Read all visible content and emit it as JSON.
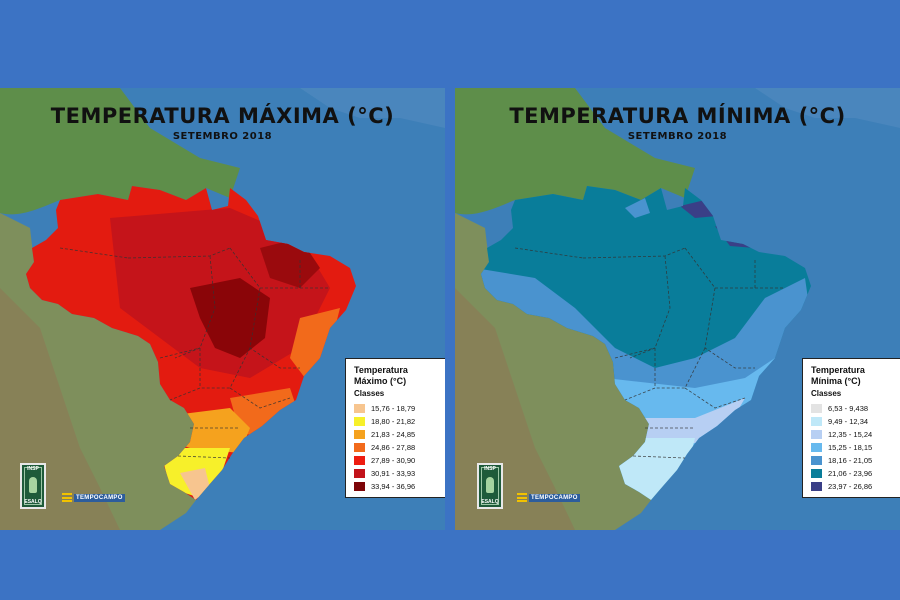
{
  "colors": {
    "background": "#3c73c4",
    "ocean": "#3d7fb8",
    "land": "#5f8d4c"
  },
  "left_map": {
    "title": "TEMPERATURA MÁXIMA (°C)",
    "subtitle": "SETEMBRO 2018",
    "legend": {
      "title_line1": "Temperatura",
      "title_line2": "Máximo (°C)",
      "classes_label": "Classes",
      "items": [
        {
          "label": "15,76 - 18,79",
          "color": "#f7c58f"
        },
        {
          "label": "18,80 - 21,82",
          "color": "#f7f02a"
        },
        {
          "label": "21,83 - 24,85",
          "color": "#f5a21e"
        },
        {
          "label": "24,86 - 27,88",
          "color": "#f26a1b"
        },
        {
          "label": "27,89 - 30,90",
          "color": "#ee1c10"
        },
        {
          "label": "30,91 - 33,93",
          "color": "#c2121a"
        },
        {
          "label": "33,94 - 36,96",
          "color": "#7d0508"
        }
      ]
    },
    "logo_inst_top": "INSP",
    "logo_inst_bottom": "ESALQ",
    "logo_brand": "TEMPOCAMPO"
  },
  "right_map": {
    "title": "TEMPERATURA MÍNIMA (°C)",
    "subtitle": "SETEMBRO 2018",
    "legend": {
      "title_line1": "Temperatura",
      "title_line2": "Mínima (°C)",
      "classes_label": "Classes",
      "items": [
        {
          "label": "6,53 - 9,438",
          "color": "#e3e3e3"
        },
        {
          "label": "9,49 - 12,34",
          "color": "#bfe8f8"
        },
        {
          "label": "12,35 - 15,24",
          "color": "#b7cff3"
        },
        {
          "label": "15,25 - 18,15",
          "color": "#67b9ee"
        },
        {
          "label": "18,16 - 21,05",
          "color": "#4a93cf"
        },
        {
          "label": "21,06 - 23,96",
          "color": "#097d9a"
        },
        {
          "label": "23,97 - 26,86",
          "color": "#3a3f87"
        }
      ]
    },
    "logo_inst_top": "INSP",
    "logo_inst_bottom": "ESALQ",
    "logo_brand": "TEMPOCAMPO"
  }
}
